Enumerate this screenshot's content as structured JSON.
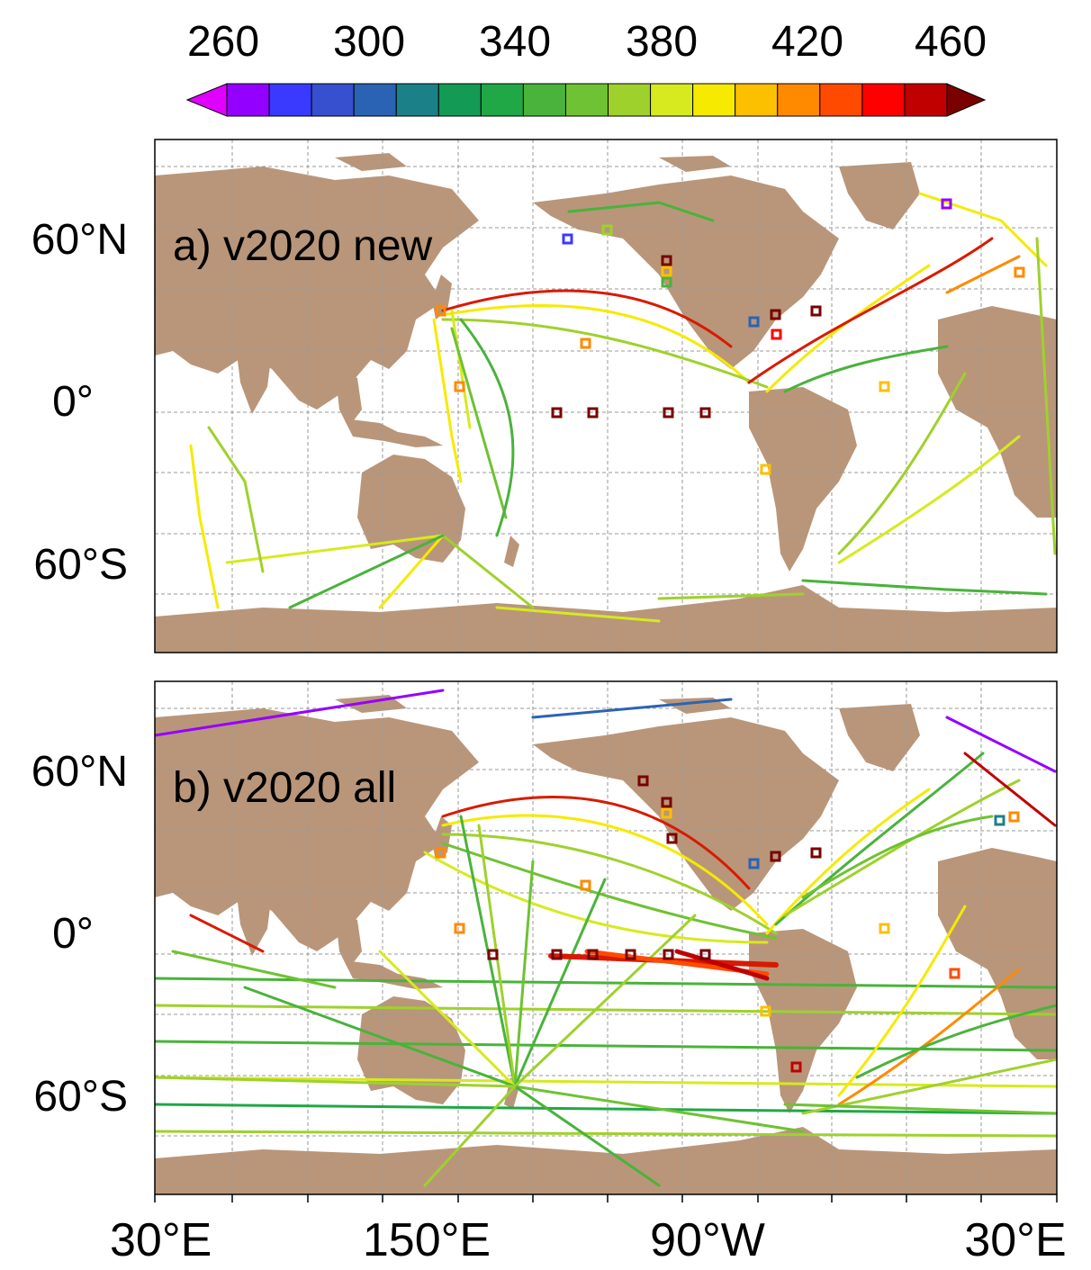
{
  "figure": {
    "colorbar": {
      "ticks": [
        "260",
        "300",
        "340",
        "380",
        "420",
        "460"
      ],
      "colors": [
        "#9400ff",
        "#3a3aff",
        "#3650d0",
        "#2a63b4",
        "#1c8088",
        "#139a55",
        "#1fa845",
        "#49b33b",
        "#6ec233",
        "#9fd12c",
        "#d6ea1f",
        "#f5ea00",
        "#fcc000",
        "#ff8a00",
        "#ff4a00",
        "#ff0000",
        "#c00000"
      ],
      "arrow_low_color": "#e000ff",
      "arrow_high_color": "#7a0000"
    },
    "panels": [
      {
        "label": "a) v2020 new"
      },
      {
        "label": "b) v2020 all"
      }
    ],
    "y_ticks": [
      "60°N",
      "0°",
      "60°S"
    ],
    "x_ticks": [
      "30°E",
      "150°E",
      "90°W",
      "30°E"
    ],
    "land_color": "#b9967a",
    "ocean_color": "#ffffff"
  }
}
